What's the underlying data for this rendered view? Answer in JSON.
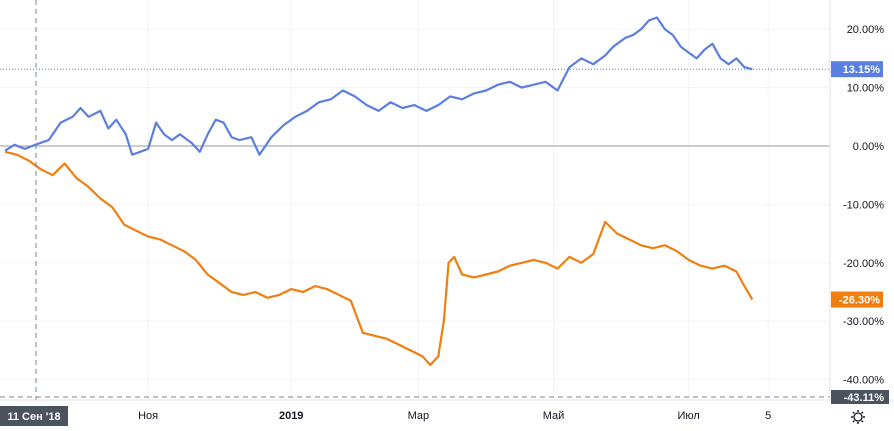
{
  "chart_data": {
    "type": "line",
    "x_ticks": [
      "Ноя",
      "2019",
      "Мар",
      "Май",
      "Июл",
      "5"
    ],
    "y_ticks": [
      "20.00%",
      "10.00%",
      "0.00%",
      "-10.00%",
      "-20.00%",
      "-30.00%",
      "-40.00%"
    ],
    "ylim": [
      -43.5,
      25
    ],
    "xlim": [
      0,
      1
    ],
    "grid": true,
    "series": [
      {
        "color": "#5b7fe0",
        "last_label": "13.15%",
        "last_value": 13.15,
        "points": [
          [
            0.0,
            -0.8
          ],
          [
            0.012,
            0.2
          ],
          [
            0.025,
            -0.5
          ],
          [
            0.04,
            0.3
          ],
          [
            0.055,
            1.0
          ],
          [
            0.07,
            4.0
          ],
          [
            0.085,
            5.0
          ],
          [
            0.095,
            6.5
          ],
          [
            0.105,
            5.0
          ],
          [
            0.12,
            6.0
          ],
          [
            0.13,
            3.0
          ],
          [
            0.14,
            4.5
          ],
          [
            0.152,
            2.0
          ],
          [
            0.16,
            -1.5
          ],
          [
            0.17,
            -1.0
          ],
          [
            0.18,
            -0.5
          ],
          [
            0.19,
            4.0
          ],
          [
            0.2,
            2.0
          ],
          [
            0.21,
            1.0
          ],
          [
            0.22,
            2.0
          ],
          [
            0.235,
            0.5
          ],
          [
            0.245,
            -1.0
          ],
          [
            0.255,
            2.0
          ],
          [
            0.265,
            4.5
          ],
          [
            0.275,
            4.0
          ],
          [
            0.285,
            1.5
          ],
          [
            0.295,
            1.0
          ],
          [
            0.31,
            1.5
          ],
          [
            0.32,
            -1.5
          ],
          [
            0.335,
            1.5
          ],
          [
            0.35,
            3.5
          ],
          [
            0.365,
            5.0
          ],
          [
            0.38,
            6.0
          ],
          [
            0.395,
            7.5
          ],
          [
            0.41,
            8.0
          ],
          [
            0.425,
            9.5
          ],
          [
            0.44,
            8.5
          ],
          [
            0.455,
            7.0
          ],
          [
            0.47,
            6.0
          ],
          [
            0.485,
            7.5
          ],
          [
            0.5,
            6.5
          ],
          [
            0.515,
            7.0
          ],
          [
            0.53,
            6.0
          ],
          [
            0.545,
            7.0
          ],
          [
            0.56,
            8.5
          ],
          [
            0.575,
            8.0
          ],
          [
            0.59,
            9.0
          ],
          [
            0.605,
            9.5
          ],
          [
            0.62,
            10.5
          ],
          [
            0.635,
            11.0
          ],
          [
            0.65,
            10.0
          ],
          [
            0.665,
            10.5
          ],
          [
            0.68,
            11.0
          ],
          [
            0.695,
            9.5
          ],
          [
            0.71,
            13.5
          ],
          [
            0.725,
            15.0
          ],
          [
            0.74,
            14.0
          ],
          [
            0.755,
            15.5
          ],
          [
            0.765,
            17.0
          ],
          [
            0.78,
            18.5
          ],
          [
            0.79,
            19.0
          ],
          [
            0.8,
            20.0
          ],
          [
            0.81,
            21.5
          ],
          [
            0.82,
            22.0
          ],
          [
            0.83,
            20.0
          ],
          [
            0.84,
            19.0
          ],
          [
            0.85,
            17.0
          ],
          [
            0.86,
            16.0
          ],
          [
            0.87,
            15.0
          ],
          [
            0.88,
            16.5
          ],
          [
            0.89,
            17.5
          ],
          [
            0.9,
            15.0
          ],
          [
            0.91,
            14.0
          ],
          [
            0.92,
            15.0
          ],
          [
            0.93,
            13.5
          ],
          [
            0.94,
            13.15
          ]
        ]
      },
      {
        "color": "#f07f0f",
        "last_label": "-26.30%",
        "last_value": -26.3,
        "points": [
          [
            0.0,
            -1.0
          ],
          [
            0.015,
            -1.5
          ],
          [
            0.03,
            -2.5
          ],
          [
            0.045,
            -4.0
          ],
          [
            0.06,
            -5.0
          ],
          [
            0.075,
            -3.0
          ],
          [
            0.09,
            -5.5
          ],
          [
            0.105,
            -7.0
          ],
          [
            0.12,
            -9.0
          ],
          [
            0.135,
            -10.5
          ],
          [
            0.15,
            -13.5
          ],
          [
            0.165,
            -14.5
          ],
          [
            0.18,
            -15.5
          ],
          [
            0.195,
            -16.0
          ],
          [
            0.21,
            -17.0
          ],
          [
            0.225,
            -18.0
          ],
          [
            0.24,
            -19.5
          ],
          [
            0.255,
            -22.0
          ],
          [
            0.27,
            -23.5
          ],
          [
            0.285,
            -25.0
          ],
          [
            0.3,
            -25.5
          ],
          [
            0.315,
            -25.0
          ],
          [
            0.33,
            -26.0
          ],
          [
            0.345,
            -25.5
          ],
          [
            0.36,
            -24.5
          ],
          [
            0.375,
            -25.0
          ],
          [
            0.39,
            -24.0
          ],
          [
            0.405,
            -24.5
          ],
          [
            0.42,
            -25.5
          ],
          [
            0.435,
            -26.5
          ],
          [
            0.45,
            -32.0
          ],
          [
            0.465,
            -32.5
          ],
          [
            0.48,
            -33.0
          ],
          [
            0.495,
            -34.0
          ],
          [
            0.51,
            -35.0
          ],
          [
            0.525,
            -36.0
          ],
          [
            0.535,
            -37.5
          ],
          [
            0.545,
            -36.0
          ],
          [
            0.552,
            -30.0
          ],
          [
            0.558,
            -20.0
          ],
          [
            0.565,
            -19.0
          ],
          [
            0.575,
            -22.0
          ],
          [
            0.59,
            -22.5
          ],
          [
            0.605,
            -22.0
          ],
          [
            0.62,
            -21.5
          ],
          [
            0.635,
            -20.5
          ],
          [
            0.65,
            -20.0
          ],
          [
            0.665,
            -19.5
          ],
          [
            0.68,
            -20.0
          ],
          [
            0.695,
            -21.0
          ],
          [
            0.71,
            -19.0
          ],
          [
            0.725,
            -20.0
          ],
          [
            0.74,
            -18.5
          ],
          [
            0.755,
            -13.0
          ],
          [
            0.77,
            -15.0
          ],
          [
            0.785,
            -16.0
          ],
          [
            0.8,
            -17.0
          ],
          [
            0.815,
            -17.5
          ],
          [
            0.83,
            -17.0
          ],
          [
            0.845,
            -18.0
          ],
          [
            0.86,
            -19.5
          ],
          [
            0.875,
            -20.5
          ],
          [
            0.89,
            -21.0
          ],
          [
            0.905,
            -20.5
          ],
          [
            0.92,
            -21.5
          ],
          [
            0.93,
            -24.0
          ],
          [
            0.94,
            -26.3
          ]
        ]
      }
    ],
    "crosshair_label": "11 Сен '18",
    "crosshair_value_label": "-43.11%"
  }
}
